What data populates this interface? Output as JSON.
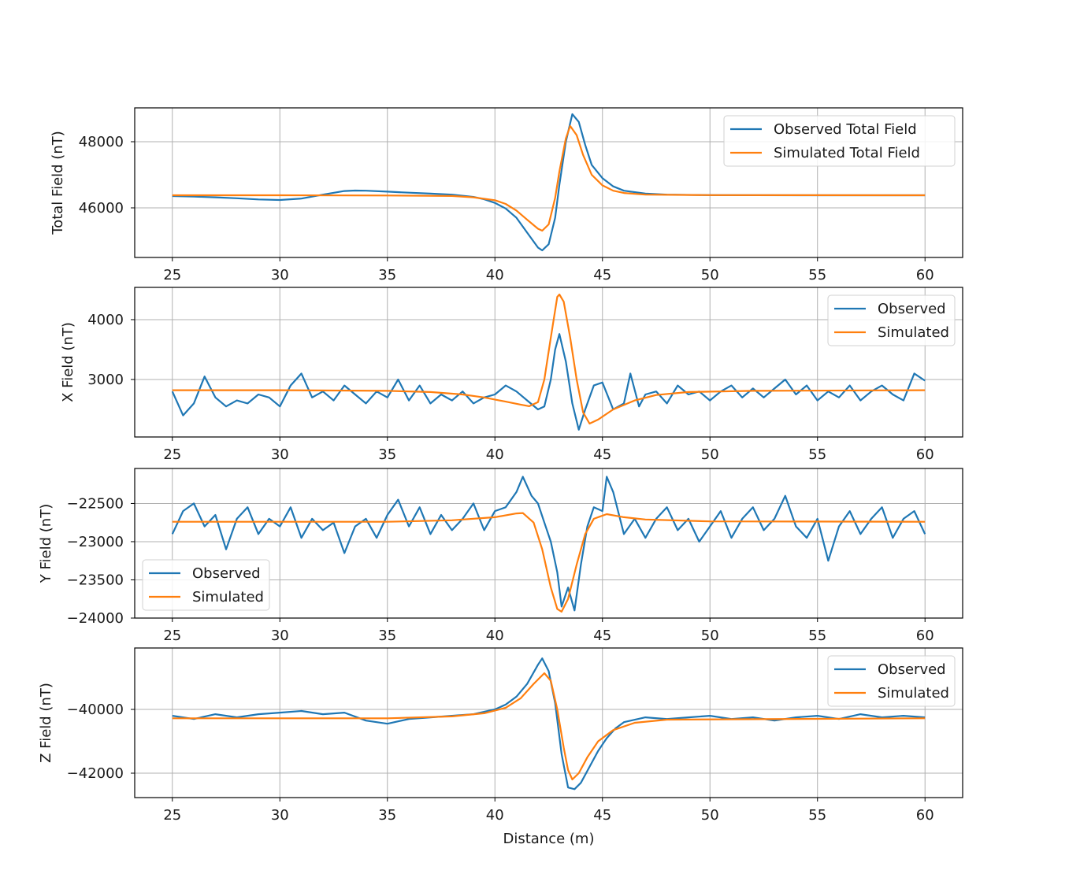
{
  "chart_data": [
    {
      "type": "line",
      "ylabel": "Total Field (nT)",
      "xlabel": "",
      "xlim": [
        23.25,
        61.75
      ],
      "ylim": [
        44500,
        49024
      ],
      "xticks": [
        25,
        30,
        35,
        40,
        45,
        50,
        55,
        60
      ],
      "yticks": [
        46000,
        48000
      ],
      "grid": true,
      "legend": "top-right",
      "series": [
        {
          "name": "Observed Total Field",
          "color": "#1f77b4",
          "x": [
            25,
            26,
            27,
            28,
            29,
            30,
            31,
            32,
            33,
            33.5,
            34,
            35,
            36,
            37,
            38,
            39,
            39.5,
            40,
            40.5,
            41,
            41.5,
            42,
            42.2,
            42.5,
            42.8,
            43,
            43.3,
            43.6,
            43.9,
            44.2,
            44.5,
            45,
            45.5,
            46,
            47,
            48,
            50,
            55,
            60
          ],
          "y": [
            46357,
            46340,
            46320,
            46290,
            46255,
            46238,
            46280,
            46400,
            46510,
            46524,
            46520,
            46490,
            46460,
            46430,
            46400,
            46330,
            46260,
            46150,
            45980,
            45700,
            45250,
            44800,
            44714,
            44900,
            45700,
            46700,
            48000,
            48833,
            48600,
            47900,
            47300,
            46900,
            46650,
            46520,
            46430,
            46400,
            46385,
            46380,
            46380
          ]
        },
        {
          "name": "Simulated Total Field",
          "color": "#ff7f0e",
          "x": [
            25,
            30,
            35,
            38,
            39,
            40,
            40.5,
            41,
            41.5,
            42,
            42.2,
            42.5,
            42.8,
            43,
            43.3,
            43.5,
            43.8,
            44.1,
            44.5,
            45,
            45.5,
            46,
            47,
            50,
            60
          ],
          "y": [
            46380,
            46380,
            46375,
            46360,
            46320,
            46230,
            46120,
            45920,
            45640,
            45370,
            45310,
            45500,
            46300,
            47100,
            48100,
            48476,
            48200,
            47600,
            47000,
            46680,
            46520,
            46450,
            46400,
            46385,
            46380
          ]
        }
      ]
    },
    {
      "type": "line",
      "ylabel": "X Field (nT)",
      "xlabel": "",
      "xlim": [
        23.25,
        61.75
      ],
      "ylim": [
        2039,
        4539
      ],
      "xticks": [
        25,
        30,
        35,
        40,
        45,
        50,
        55,
        60
      ],
      "yticks": [
        3000,
        4000
      ],
      "grid": true,
      "legend": "top-right",
      "series": [
        {
          "name": "Observed",
          "color": "#1f77b4",
          "x": [
            25,
            25.5,
            26,
            26.5,
            27,
            27.5,
            28,
            28.5,
            29,
            29.5,
            30,
            30.5,
            31,
            31.5,
            32,
            32.5,
            33,
            33.5,
            34,
            34.5,
            35,
            35.5,
            36,
            36.5,
            37,
            37.5,
            38,
            38.5,
            39,
            39.5,
            40,
            40.5,
            41,
            41.5,
            42,
            42.3,
            42.6,
            42.8,
            43,
            43.3,
            43.6,
            43.9,
            44.2,
            44.6,
            45,
            45.5,
            46,
            46.3,
            46.7,
            47,
            47.5,
            48,
            48.5,
            49,
            49.5,
            50,
            50.5,
            51,
            51.5,
            52,
            52.5,
            53,
            53.5,
            54,
            54.5,
            55,
            55.5,
            56,
            56.5,
            57,
            57.5,
            58,
            58.5,
            59,
            59.5,
            60
          ],
          "y": [
            2800,
            2400,
            2600,
            3050,
            2700,
            2550,
            2650,
            2600,
            2750,
            2700,
            2550,
            2900,
            3100,
            2700,
            2800,
            2650,
            2900,
            2750,
            2600,
            2800,
            2700,
            3000,
            2650,
            2900,
            2600,
            2750,
            2650,
            2800,
            2600,
            2700,
            2750,
            2900,
            2800,
            2650,
            2500,
            2550,
            3000,
            3500,
            3760,
            3300,
            2600,
            2160,
            2500,
            2900,
            2950,
            2500,
            2600,
            3100,
            2550,
            2750,
            2800,
            2600,
            2900,
            2750,
            2800,
            2650,
            2800,
            2900,
            2700,
            2850,
            2700,
            2850,
            3000,
            2750,
            2900,
            2650,
            2800,
            2700,
            2900,
            2650,
            2800,
            2900,
            2750,
            2650,
            3100,
            2980
          ]
        },
        {
          "name": "Simulated",
          "color": "#ff7f0e",
          "x": [
            25,
            30,
            35,
            37,
            38.5,
            39.5,
            40.5,
            41.2,
            41.6,
            42,
            42.3,
            42.6,
            42.9,
            43,
            43.2,
            43.5,
            43.8,
            44.1,
            44.4,
            44.8,
            45.5,
            46.5,
            47.5,
            49,
            52,
            60
          ],
          "y": [
            2820,
            2820,
            2810,
            2790,
            2750,
            2700,
            2630,
            2580,
            2553,
            2620,
            3000,
            3700,
            4380,
            4421,
            4300,
            3700,
            3000,
            2450,
            2263,
            2330,
            2500,
            2650,
            2740,
            2790,
            2810,
            2820
          ]
        }
      ]
    },
    {
      "type": "line",
      "ylabel": "Y Field (nT)",
      "xlabel": "",
      "xlim": [
        23.25,
        61.75
      ],
      "ylim": [
        -24000,
        -22042
      ],
      "xticks": [
        25,
        30,
        35,
        40,
        45,
        50,
        55,
        60
      ],
      "yticks": [
        -24000,
        -23500,
        -23000,
        -22500
      ],
      "grid": true,
      "legend": "bottom-left",
      "series": [
        {
          "name": "Observed",
          "color": "#1f77b4",
          "x": [
            25,
            25.5,
            26,
            26.5,
            27,
            27.5,
            28,
            28.5,
            29,
            29.5,
            30,
            30.5,
            31,
            31.5,
            32,
            32.5,
            33,
            33.5,
            34,
            34.5,
            35,
            35.5,
            36,
            36.5,
            37,
            37.5,
            38,
            38.5,
            39,
            39.5,
            40,
            40.5,
            41,
            41.3,
            41.7,
            42,
            42.3,
            42.6,
            42.9,
            43.1,
            43.4,
            43.7,
            44,
            44.3,
            44.6,
            45,
            45.2,
            45.5,
            46,
            46.5,
            47,
            47.5,
            48,
            48.5,
            49,
            49.5,
            50,
            50.5,
            51,
            51.5,
            52,
            52.5,
            53,
            53.5,
            54,
            54.5,
            55,
            55.5,
            56,
            56.5,
            57,
            57.5,
            58,
            58.5,
            59,
            59.5,
            60
          ],
          "y": [
            -22900,
            -22600,
            -22500,
            -22800,
            -22650,
            -23100,
            -22700,
            -22550,
            -22900,
            -22700,
            -22800,
            -22550,
            -22950,
            -22700,
            -22850,
            -22750,
            -23150,
            -22800,
            -22700,
            -22950,
            -22650,
            -22450,
            -22800,
            -22550,
            -22900,
            -22650,
            -22850,
            -22700,
            -22500,
            -22850,
            -22600,
            -22550,
            -22350,
            -22150,
            -22400,
            -22500,
            -22750,
            -23000,
            -23400,
            -23850,
            -23600,
            -23900,
            -23300,
            -22800,
            -22550,
            -22600,
            -22150,
            -22350,
            -22900,
            -22700,
            -22950,
            -22700,
            -22550,
            -22850,
            -22700,
            -23000,
            -22800,
            -22600,
            -22950,
            -22700,
            -22550,
            -22850,
            -22700,
            -22400,
            -22800,
            -22950,
            -22700,
            -23250,
            -22800,
            -22600,
            -22900,
            -22700,
            -22550,
            -22950,
            -22700,
            -22600,
            -22900
          ]
        },
        {
          "name": "Simulated",
          "color": "#ff7f0e",
          "x": [
            25,
            35,
            38,
            40,
            41,
            41.3,
            41.8,
            42.2,
            42.6,
            42.9,
            43.1,
            43.4,
            43.8,
            44.2,
            44.6,
            45.2,
            46,
            47,
            50,
            60
          ],
          "y": [
            -22740,
            -22740,
            -22720,
            -22680,
            -22630,
            -22625,
            -22750,
            -23100,
            -23600,
            -23880,
            -23917,
            -23750,
            -23300,
            -22900,
            -22700,
            -22640,
            -22680,
            -22710,
            -22735,
            -22740
          ]
        }
      ]
    },
    {
      "type": "line",
      "ylabel": "Z Field (nT)",
      "xlabel": "Distance (m)",
      "xlim": [
        23.25,
        61.75
      ],
      "ylim": [
        -42765,
        -38074
      ],
      "xticks": [
        25,
        30,
        35,
        40,
        45,
        50,
        55,
        60
      ],
      "yticks": [
        -42000,
        -40000
      ],
      "grid": true,
      "legend": "top-right",
      "series": [
        {
          "name": "Observed",
          "color": "#1f77b4",
          "x": [
            25,
            26,
            27,
            28,
            29,
            30,
            31,
            32,
            33,
            34,
            35,
            36,
            37,
            38,
            39,
            40,
            40.5,
            41,
            41.5,
            42,
            42.2,
            42.5,
            42.8,
            43.1,
            43.4,
            43.7,
            44,
            44.4,
            44.8,
            45.2,
            45.6,
            46,
            47,
            48,
            49,
            50,
            51,
            52,
            53,
            54,
            55,
            56,
            57,
            58,
            59,
            60
          ],
          "y": [
            -40200,
            -40300,
            -40150,
            -40250,
            -40150,
            -40100,
            -40050,
            -40150,
            -40100,
            -40350,
            -40450,
            -40300,
            -40250,
            -40200,
            -40150,
            -40000,
            -39850,
            -39600,
            -39200,
            -38600,
            -38400,
            -38800,
            -39800,
            -41400,
            -42450,
            -42500,
            -42300,
            -41800,
            -41300,
            -40900,
            -40600,
            -40400,
            -40250,
            -40300,
            -40250,
            -40200,
            -40300,
            -40250,
            -40350,
            -40250,
            -40200,
            -40300,
            -40150,
            -40250,
            -40200,
            -40250
          ]
        },
        {
          "name": "Simulated",
          "color": "#ff7f0e",
          "x": [
            25,
            35,
            38,
            39.5,
            40.5,
            41.2,
            41.8,
            42.3,
            42.6,
            42.9,
            43.2,
            43.4,
            43.6,
            43.9,
            44.3,
            44.8,
            45.5,
            46.5,
            48,
            60
          ],
          "y": [
            -40280,
            -40280,
            -40220,
            -40120,
            -39950,
            -39650,
            -39200,
            -38864,
            -39100,
            -40000,
            -41200,
            -41900,
            -42198,
            -42000,
            -41500,
            -41000,
            -40650,
            -40420,
            -40320,
            -40280
          ]
        }
      ]
    }
  ]
}
